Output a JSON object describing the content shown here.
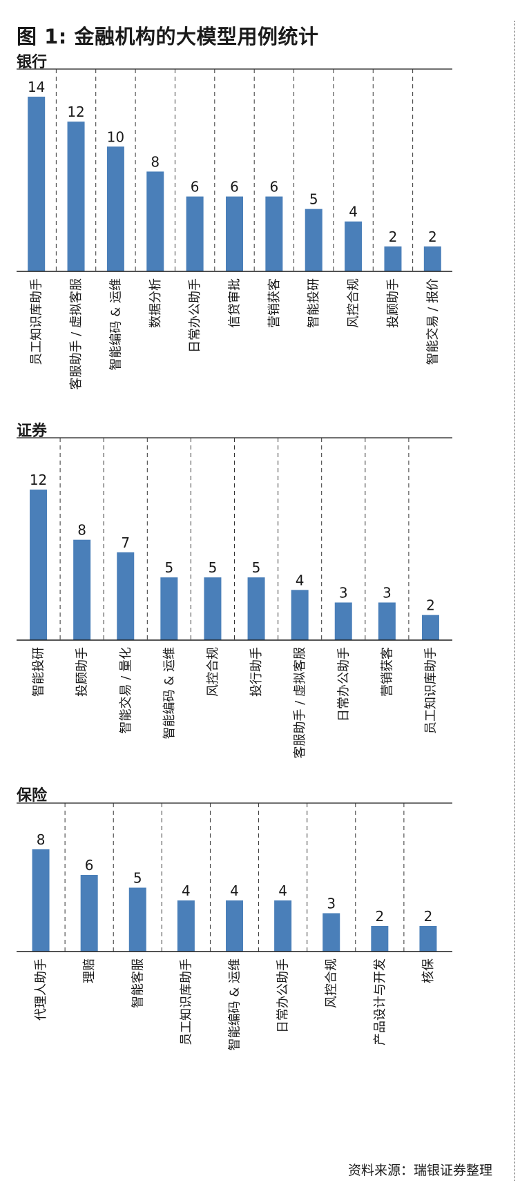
{
  "title": "图 1: 金融机构的大模型用例统计",
  "source": "资料来源：瑞银证券整理",
  "colors": {
    "bar": "#4a7fb9",
    "axis": "#1a1a1a"
  },
  "chart_data": [
    {
      "type": "bar",
      "title": "银行",
      "categories": [
        "员工知识库助手",
        "客服助手 / 虚拟客服",
        "智能编码 & 运维",
        "数据分析",
        "日常办公助手",
        "信贷审批",
        "营销获客",
        "智能投研",
        "风控合规",
        "投顾助手",
        "智能交易 / 报价"
      ],
      "values": [
        14,
        12,
        10,
        8,
        6,
        6,
        6,
        5,
        4,
        2,
        2
      ],
      "ylim": [
        0,
        14
      ]
    },
    {
      "type": "bar",
      "title": "证券",
      "categories": [
        "智能投研",
        "投顾助手",
        "智能交易 / 量化",
        "智能编码 & 运维",
        "风控合规",
        "投行助手",
        "客服助手 / 虚拟客服",
        "日常办公助手",
        "营销获客",
        "员工知识库助手"
      ],
      "values": [
        12,
        8,
        7,
        5,
        5,
        5,
        4,
        3,
        3,
        2
      ],
      "ylim": [
        0,
        12
      ]
    },
    {
      "type": "bar",
      "title": "保险",
      "categories": [
        "代理人助手",
        "理赔",
        "智能客服",
        "员工知识库助手",
        "智能编码 & 运维",
        "日常办公助手",
        "风控合规",
        "产品设计与开发",
        "核保"
      ],
      "values": [
        8,
        6,
        5,
        4,
        4,
        4,
        3,
        2,
        2
      ],
      "ylim": [
        0,
        8
      ]
    }
  ]
}
